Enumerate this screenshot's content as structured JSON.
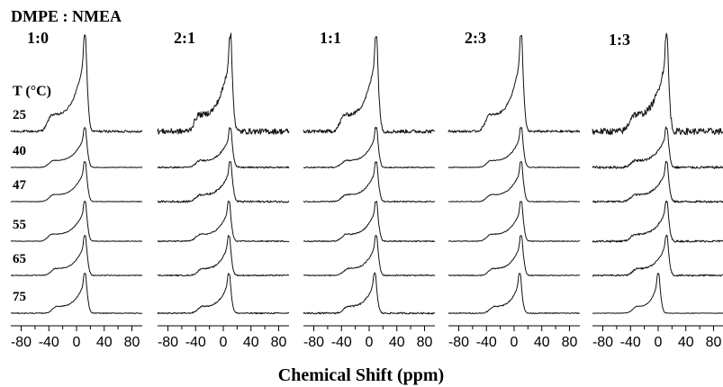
{
  "figure": {
    "title": "DMPE : NMEA",
    "temperature_header": "T (°C)",
    "xlabel": "Chemical Shift (ppm)"
  },
  "chart_data": {
    "type": "line",
    "title": "DMPE : NMEA",
    "xlabel": "Chemical Shift (ppm)",
    "ylabel": "",
    "xlim": [
      -95,
      95
    ],
    "x_reversed": false,
    "x_ticks": [
      -80,
      -60,
      -40,
      -20,
      0,
      20,
      40,
      60,
      80
    ],
    "x_tick_labels": [
      "-80",
      "-40",
      "0",
      "40",
      "80"
    ],
    "temperature_unit": "T (°C)",
    "temperatures": [
      "25",
      "40",
      "47",
      "55",
      "65",
      "75"
    ],
    "panels": [
      {
        "ratio": "1:0",
        "spectra": [
          {
            "temperature": "25",
            "peak_ppm": 12,
            "shoulder_ppm": -35,
            "noise": 0.012
          },
          {
            "temperature": "40",
            "peak_ppm": 12,
            "shoulder_ppm": -33,
            "noise": 0.008
          },
          {
            "temperature": "47",
            "peak_ppm": 12,
            "shoulder_ppm": -33,
            "noise": 0.008
          },
          {
            "temperature": "55",
            "peak_ppm": 12,
            "shoulder_ppm": -35,
            "noise": 0.008
          },
          {
            "temperature": "65",
            "peak_ppm": 12,
            "shoulder_ppm": -30,
            "noise": 0.01
          },
          {
            "temperature": "75",
            "peak_ppm": 12,
            "shoulder_ppm": -28,
            "noise": 0.01
          }
        ]
      },
      {
        "ratio": "2:1",
        "spectra": [
          {
            "temperature": "25",
            "peak_ppm": 10,
            "shoulder_ppm": -35,
            "noise": 0.03
          },
          {
            "temperature": "40",
            "peak_ppm": 10,
            "shoulder_ppm": -33,
            "noise": 0.02
          },
          {
            "temperature": "47",
            "peak_ppm": 10,
            "shoulder_ppm": -33,
            "noise": 0.025
          },
          {
            "temperature": "55",
            "peak_ppm": 8,
            "shoulder_ppm": -33,
            "noise": 0.015
          },
          {
            "temperature": "65",
            "peak_ppm": 8,
            "shoulder_ppm": -30,
            "noise": 0.015
          },
          {
            "temperature": "75",
            "peak_ppm": 8,
            "shoulder_ppm": -30,
            "noise": 0.015
          }
        ]
      },
      {
        "ratio": "1:1",
        "spectra": [
          {
            "temperature": "25",
            "peak_ppm": 10,
            "shoulder_ppm": -35,
            "noise": 0.02
          },
          {
            "temperature": "40",
            "peak_ppm": 10,
            "shoulder_ppm": -33,
            "noise": 0.015
          },
          {
            "temperature": "47",
            "peak_ppm": 10,
            "shoulder_ppm": -33,
            "noise": 0.015
          },
          {
            "temperature": "55",
            "peak_ppm": 10,
            "shoulder_ppm": -33,
            "noise": 0.015
          },
          {
            "temperature": "65",
            "peak_ppm": 10,
            "shoulder_ppm": -30,
            "noise": 0.015
          },
          {
            "temperature": "75",
            "peak_ppm": 8,
            "shoulder_ppm": -30,
            "noise": 0.02
          }
        ]
      },
      {
        "ratio": "2:3",
        "spectra": [
          {
            "temperature": "25",
            "peak_ppm": 10,
            "shoulder_ppm": -35,
            "noise": 0.012
          },
          {
            "temperature": "40",
            "peak_ppm": 10,
            "shoulder_ppm": -33,
            "noise": 0.01
          },
          {
            "temperature": "47",
            "peak_ppm": 10,
            "shoulder_ppm": -33,
            "noise": 0.01
          },
          {
            "temperature": "55",
            "peak_ppm": 10,
            "shoulder_ppm": -33,
            "noise": 0.01
          },
          {
            "temperature": "65",
            "peak_ppm": 10,
            "shoulder_ppm": -30,
            "noise": 0.012
          },
          {
            "temperature": "75",
            "peak_ppm": 8,
            "shoulder_ppm": -28,
            "noise": 0.012
          }
        ]
      },
      {
        "ratio": "1:3",
        "spectra": [
          {
            "temperature": "25",
            "peak_ppm": 12,
            "shoulder_ppm": -35,
            "noise": 0.035
          },
          {
            "temperature": "40",
            "peak_ppm": 12,
            "shoulder_ppm": -33,
            "noise": 0.03
          },
          {
            "temperature": "47",
            "peak_ppm": 12,
            "shoulder_ppm": -33,
            "noise": 0.025
          },
          {
            "temperature": "55",
            "peak_ppm": 12,
            "shoulder_ppm": -33,
            "noise": 0.025
          },
          {
            "temperature": "65",
            "peak_ppm": 12,
            "shoulder_ppm": -30,
            "noise": 0.02
          },
          {
            "temperature": "75",
            "peak_ppm": 0,
            "shoulder_ppm": -30,
            "noise": 0.006
          }
        ]
      }
    ]
  }
}
